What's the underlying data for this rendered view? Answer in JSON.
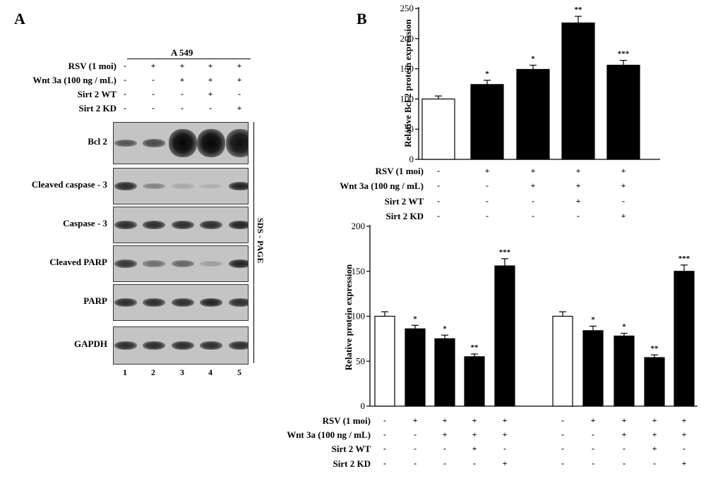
{
  "panel_a": {
    "letter": "A",
    "cell_line": "A 549",
    "conditions": [
      {
        "label": "RSV (1 moi)",
        "signs": [
          "-",
          "+",
          "+",
          "+",
          "+"
        ]
      },
      {
        "label": "Wnt 3a (100 ng / mL)",
        "signs": [
          "-",
          "-",
          "+",
          "+",
          "+"
        ]
      },
      {
        "label": "Sirt 2 WT",
        "signs": [
          "-",
          "-",
          "-",
          "+",
          "-"
        ]
      },
      {
        "label": "Sirt 2 KD",
        "signs": [
          "-",
          "-",
          "-",
          "-",
          "+"
        ]
      }
    ],
    "blots": [
      {
        "label": "Bcl 2",
        "intensity": [
          0.6,
          0.65,
          1.0,
          1.0,
          0.95
        ]
      },
      {
        "label": "Cleaved caspase - 3",
        "intensity": [
          0.8,
          0.35,
          0.15,
          0.05,
          0.85
        ]
      },
      {
        "label": "Caspase - 3",
        "intensity": [
          0.8,
          0.8,
          0.8,
          0.8,
          0.85
        ]
      },
      {
        "label": "Cleaved PARP",
        "intensity": [
          0.75,
          0.45,
          0.5,
          0.2,
          0.85
        ]
      },
      {
        "label": "PARP",
        "intensity": [
          0.8,
          0.8,
          0.8,
          0.85,
          0.8
        ]
      },
      {
        "label": "GAPDH",
        "intensity": [
          0.8,
          0.8,
          0.8,
          0.8,
          0.8
        ]
      }
    ],
    "lanes": [
      "1",
      "2",
      "3",
      "4",
      "5"
    ],
    "side_label": "SDS - PAGE"
  },
  "panel_b": {
    "letter": "B",
    "conditions": [
      {
        "label": "RSV (1 moi)",
        "signs": [
          "-",
          "+",
          "+",
          "+",
          "+"
        ]
      },
      {
        "label": "Wnt 3a (100 ng / mL)",
        "signs": [
          "-",
          "-",
          "+",
          "+",
          "+"
        ]
      },
      {
        "label": "Sirt 2 WT",
        "signs": [
          "-",
          "-",
          "-",
          "+",
          "-"
        ]
      },
      {
        "label": "Sirt 2 KD",
        "signs": [
          "-",
          "-",
          "-",
          "-",
          "+"
        ]
      }
    ]
  },
  "chart_data": [
    {
      "type": "bar",
      "ylabel": "Relative Bcl 2 protein expression",
      "ylim": [
        0,
        250
      ],
      "yticks": [
        0,
        50,
        100,
        150,
        200,
        250
      ],
      "values": [
        100,
        124,
        149,
        226,
        156
      ],
      "errors": [
        5,
        7,
        7,
        11,
        8
      ],
      "significance": [
        "",
        "*",
        "*",
        "**",
        "***"
      ],
      "bar_colors": [
        "#ffffff",
        "#000000",
        "#000000",
        "#000000",
        "#000000"
      ]
    },
    {
      "type": "bar",
      "ylabel": "Relative protein expression",
      "ylim": [
        0,
        200
      ],
      "yticks": [
        0,
        50,
        100,
        150,
        200
      ],
      "groups": [
        {
          "values": [
            100,
            86,
            75,
            55,
            156
          ],
          "errors": [
            5,
            4,
            4,
            3,
            8
          ],
          "significance": [
            "",
            "*",
            "*",
            "**",
            "***"
          ]
        },
        {
          "values": [
            100,
            84,
            78,
            54,
            150
          ],
          "errors": [
            5,
            5,
            3,
            3,
            7
          ],
          "significance": [
            "",
            "*",
            "*",
            "**",
            "***"
          ]
        }
      ],
      "bar_colors": [
        "#ffffff",
        "#000000",
        "#000000",
        "#000000",
        "#000000"
      ]
    }
  ]
}
